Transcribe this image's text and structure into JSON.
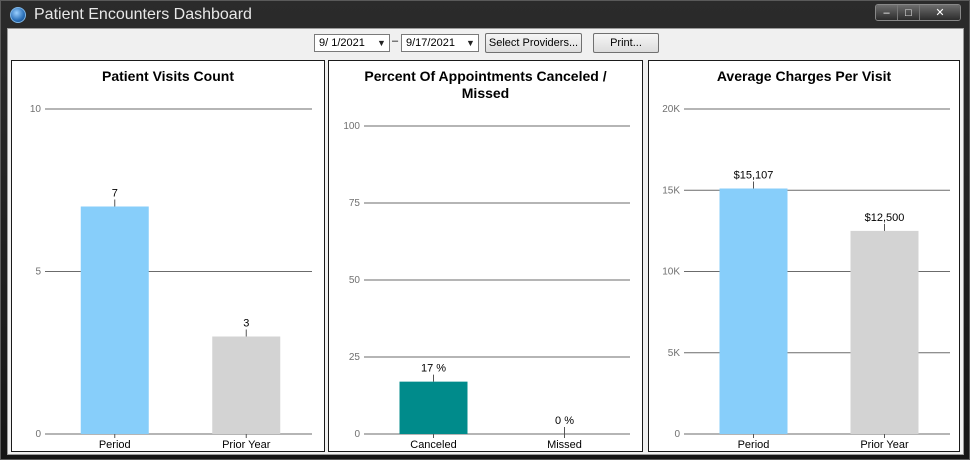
{
  "window": {
    "title": "Patient Encounters Dashboard"
  },
  "toolbar": {
    "start_date": "9/  1/2021",
    "date_separator": "–",
    "end_date": "9/17/2021",
    "select_providers_label": "Select Providers...",
    "print_label": "Print..."
  },
  "chart_data": [
    {
      "type": "bar",
      "title": "Patient Visits Count",
      "categories": [
        "Period",
        "Prior Year"
      ],
      "values": [
        7,
        3
      ],
      "data_labels": [
        "7",
        "3"
      ],
      "yticks": [
        "0",
        "5",
        "10"
      ],
      "ylim": [
        0,
        10
      ],
      "colors": [
        "#87cefa",
        "#d3d3d3"
      ]
    },
    {
      "type": "bar",
      "title": "Percent Of Appointments Canceled / Missed",
      "categories": [
        "Canceled",
        "Missed"
      ],
      "values": [
        17,
        0
      ],
      "data_labels": [
        "17 %",
        "0 %"
      ],
      "yticks": [
        "0",
        "25",
        "50",
        "75",
        "100"
      ],
      "ylim": [
        0,
        100
      ],
      "colors": [
        "#008b8b",
        "#008b8b"
      ]
    },
    {
      "type": "bar",
      "title": "Average Charges Per Visit",
      "categories": [
        "Period",
        "Prior Year"
      ],
      "values": [
        15107,
        12500
      ],
      "data_labels": [
        "$15,107",
        "$12,500"
      ],
      "yticks": [
        "0",
        "5K",
        "10K",
        "15K",
        "20K"
      ],
      "ylim": [
        0,
        20000
      ],
      "colors": [
        "#87cefa",
        "#d3d3d3"
      ]
    }
  ]
}
